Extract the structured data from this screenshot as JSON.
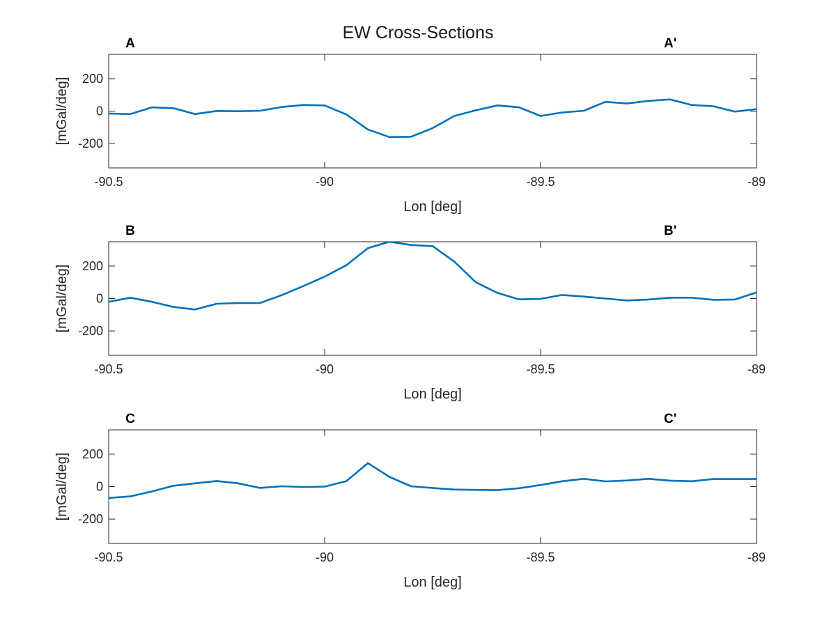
{
  "figure": {
    "title": "EW Cross-Sections"
  },
  "colors": {
    "line": "#0072BD",
    "axes": "#262626",
    "background": "#ffffff"
  },
  "chart_data": [
    {
      "type": "line",
      "title": "",
      "start_label": "A",
      "end_label": "A'",
      "xlabel": "Lon [deg]",
      "ylabel": "[mGal/deg]",
      "xlim": [
        -90.5,
        -89
      ],
      "ylim": [
        -350,
        350
      ],
      "xticks": [
        -90.5,
        -90,
        -89.5,
        -89
      ],
      "xtick_labels": [
        "-90.5",
        "-90",
        "-89.5",
        "-89"
      ],
      "yticks": [
        -200,
        0,
        200
      ],
      "ytick_labels": [
        "-200",
        "0",
        "200"
      ],
      "grid": false,
      "x": [
        -90.5,
        -90.45,
        -90.4,
        -90.35,
        -90.3,
        -90.25,
        -90.2,
        -90.15,
        -90.1,
        -90.05,
        -90.0,
        -89.95,
        -89.9,
        -89.85,
        -89.8,
        -89.75,
        -89.7,
        -89.65,
        -89.6,
        -89.55,
        -89.5,
        -89.45,
        -89.4,
        -89.35,
        -89.3,
        -89.25,
        -89.2,
        -89.15,
        -89.1,
        -89.05,
        -89.0
      ],
      "y": [
        -15,
        -18,
        23,
        18,
        -18,
        1,
        -1,
        2,
        25,
        38,
        35,
        -20,
        -113,
        -160,
        -158,
        -105,
        -30,
        5,
        35,
        23,
        -30,
        -8,
        2,
        57,
        47,
        63,
        72,
        38,
        30,
        -3,
        12
      ]
    },
    {
      "type": "line",
      "title": "",
      "start_label": "B",
      "end_label": "B'",
      "xlabel": "Lon [deg]",
      "ylabel": "[mGal/deg]",
      "xlim": [
        -90.5,
        -89
      ],
      "ylim": [
        -350,
        350
      ],
      "xticks": [
        -90.5,
        -90,
        -89.5,
        -89
      ],
      "xtick_labels": [
        "-90.5",
        "-90",
        "-89.5",
        "-89"
      ],
      "yticks": [
        -200,
        0,
        200
      ],
      "ytick_labels": [
        "-200",
        "0",
        "200"
      ],
      "grid": false,
      "x": [
        -90.5,
        -90.45,
        -90.4,
        -90.35,
        -90.3,
        -90.25,
        -90.2,
        -90.15,
        -90.1,
        -90.05,
        -90.0,
        -89.95,
        -89.9,
        -89.85,
        -89.8,
        -89.75,
        -89.7,
        -89.65,
        -89.6,
        -89.55,
        -89.5,
        -89.45,
        -89.4,
        -89.35,
        -89.3,
        -89.25,
        -89.2,
        -89.15,
        -89.1,
        -89.05,
        -89.0
      ],
      "y": [
        -20,
        5,
        -20,
        -52,
        -68,
        -32,
        -28,
        -28,
        20,
        76,
        135,
        205,
        310,
        350,
        330,
        323,
        228,
        100,
        35,
        -5,
        -2,
        22,
        12,
        0,
        -12,
        -6,
        5,
        5,
        -8,
        -6,
        38
      ]
    },
    {
      "type": "line",
      "title": "",
      "start_label": "C",
      "end_label": "C'",
      "xlabel": "Lon [deg]",
      "ylabel": "[mGal/deg]",
      "xlim": [
        -90.5,
        -89
      ],
      "ylim": [
        -350,
        350
      ],
      "xticks": [
        -90.5,
        -90,
        -89.5,
        -89
      ],
      "xtick_labels": [
        "-90.5",
        "-90",
        "-89.5",
        "-89"
      ],
      "yticks": [
        -200,
        0,
        200
      ],
      "ytick_labels": [
        "-200",
        "0",
        "200"
      ],
      "grid": false,
      "x": [
        -90.5,
        -90.45,
        -90.4,
        -90.35,
        -90.3,
        -90.25,
        -90.2,
        -90.15,
        -90.1,
        -90.05,
        -90.0,
        -89.95,
        -89.9,
        -89.85,
        -89.8,
        -89.75,
        -89.7,
        -89.65,
        -89.6,
        -89.55,
        -89.5,
        -89.45,
        -89.4,
        -89.35,
        -89.3,
        -89.25,
        -89.2,
        -89.15,
        -89.1,
        -89.05,
        -89.0
      ],
      "y": [
        -70,
        -60,
        -30,
        5,
        20,
        35,
        20,
        -8,
        2,
        -2,
        0,
        33,
        145,
        60,
        2,
        -8,
        -18,
        -20,
        -22,
        -10,
        10,
        33,
        48,
        32,
        38,
        48,
        37,
        33,
        47,
        47,
        47
      ]
    }
  ]
}
